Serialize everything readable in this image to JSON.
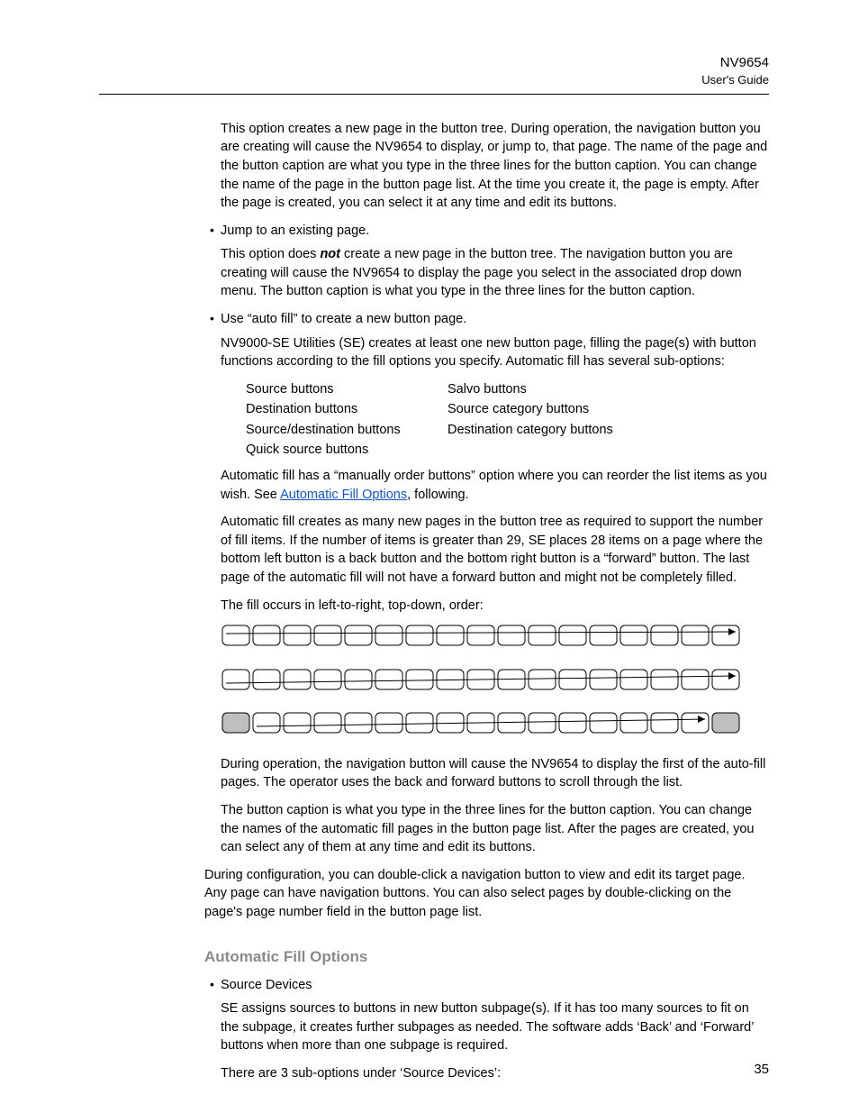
{
  "header": {
    "product": "NV9654",
    "guide": "User's Guide"
  },
  "page_number": "35",
  "body": {
    "p_intro": "This option creates a new page in the button tree. During operation, the navigation button you are creating will cause the NV9654 to display, or jump to, that page. The name of the page and the button caption are what you type in the three lines for the button caption. You can change the name of the page in the button page list. At the time you create it, the page is empty. After the page is created, you can select it at any time and edit its buttons.",
    "bullet_jump": "Jump to an existing page.",
    "p_jump_pre": "This option does ",
    "p_jump_not": "not",
    "p_jump_post": " create a new page in the button tree. The navigation button you are creating will cause the NV9654 to display the page you select in the associated drop down menu. The button caption is what you type in the three lines for the button caption.",
    "bullet_autofill": "Use “auto fill” to create a new button page.",
    "p_autofill": "NV9000-SE Utilities (SE) creates at least one new button page, filling the page(s) with button functions according to the fill options you specify. Automatic fill has several sub-options:",
    "opts": {
      "l1": "Source buttons",
      "r1": "Salvo buttons",
      "l2": "Destination buttons",
      "r2": "Source category buttons",
      "l3": "Source/destination buttons",
      "r3": "Destination category buttons",
      "l4": "Quick source buttons",
      "r4": ""
    },
    "p_manual_pre": "Automatic fill has a “manually order buttons” option where you can reorder the list items as you wish. See ",
    "p_manual_link": "Automatic Fill Options",
    "p_manual_post": ", following.",
    "p_pages": "Automatic fill creates as many new pages in the button tree as required to support the num­ber of fill items. If the number of items is greater than 29, SE places 28 items on a page where the bottom left button is a back button and the bottom right button is a “forward” button. The last page of the automatic fill will not have a forward button and might not be com­pletely filled.",
    "p_fillorder": "The fill occurs in left-to-right, top-down, order:",
    "p_during": "During operation, the navigation button will cause the NV9654 to display the first of the auto-fill pages. The operator uses the back and forward buttons to scroll through the list.",
    "p_caption": "The button caption is what you type in the three lines for the button caption. You can change the names of the automatic fill pages in the button page list. After the pages are cre­ated, you can select any of them at any time and edit its buttons.",
    "p_config": "During configuration, you can double-click a navigation button to view and edit its target page. Any page can have navigation buttons. You can also select pages by double-clicking on the page's page number field in the button page list."
  },
  "section": {
    "title": "Automatic Fill Options",
    "bullet_src": "Source Devices",
    "p_src": "SE assigns sources to buttons in new button subpage(s). If it has too many sources to fit on the subpage, it creates further subpages as needed. The software adds ‘Back’ and ‘Forward’ buttons when more than one subpage is required.",
    "p_src2": "There are 3 sub-options under ‘Source Devices’:"
  },
  "figure": {
    "cols": 17,
    "rows": 3,
    "btn_w": 30,
    "btn_h": 22,
    "gap": 4,
    "rx": 5,
    "stroke": "#000000",
    "stroke_w": 1,
    "fill": "#ffffff",
    "shade": "#bfbfbf",
    "arrow_stroke": "#000000",
    "row_svg_w": 600,
    "row_svg_h": 30
  }
}
